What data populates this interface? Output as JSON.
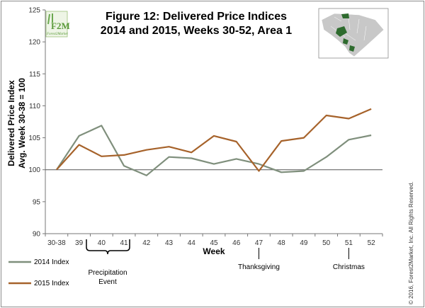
{
  "chart_data": {
    "type": "line",
    "title_line1": "Figure 12: Delivered Price Indices",
    "title_line2": "2014 and 2015, Weeks 30-52, Area 1",
    "ylabel_line1": "Delivered Price Index",
    "ylabel_line2": "Avg. Week 30-38 = 100",
    "xlabel": "Week",
    "categories": [
      "30-38",
      "39",
      "40",
      "41",
      "42",
      "43",
      "44",
      "45",
      "46",
      "47",
      "48",
      "49",
      "50",
      "51",
      "52"
    ],
    "ylim": [
      90,
      125
    ],
    "yticks": [
      90,
      95,
      100,
      105,
      110,
      115,
      120,
      125
    ],
    "reference_line": 100,
    "grid": false,
    "series": [
      {
        "name": "2014 Index",
        "color": "#7f8f7c",
        "values": [
          100.0,
          105.3,
          106.9,
          100.6,
          99.1,
          102.0,
          101.8,
          100.9,
          101.7,
          100.9,
          99.6,
          99.8,
          102.0,
          104.7,
          105.4
        ]
      },
      {
        "name": "2015 Index",
        "color": "#a6622a",
        "values": [
          100.0,
          103.9,
          102.1,
          102.3,
          103.1,
          103.6,
          102.7,
          105.3,
          104.4,
          99.8,
          104.5,
          105.0,
          108.5,
          108.0,
          109.5
        ]
      }
    ],
    "legend_placement": "bottom-left",
    "annotations": [
      {
        "text_line1": "Precipitation",
        "text_line2": "Event",
        "type": "brace",
        "from": "39",
        "to": "40"
      },
      {
        "text": "Thanksgiving",
        "type": "marker",
        "at": "47"
      },
      {
        "text": "Christmas",
        "type": "marker",
        "at": "51"
      }
    ]
  },
  "logo": {
    "big": "F2M",
    "small": "Forest2Market"
  },
  "copyright": "© 2016, Forest2Market, Inc. All Rights Reserved.",
  "map": {
    "highlight_color": "#2e6b2e",
    "base_color": "#c8c8c8"
  }
}
